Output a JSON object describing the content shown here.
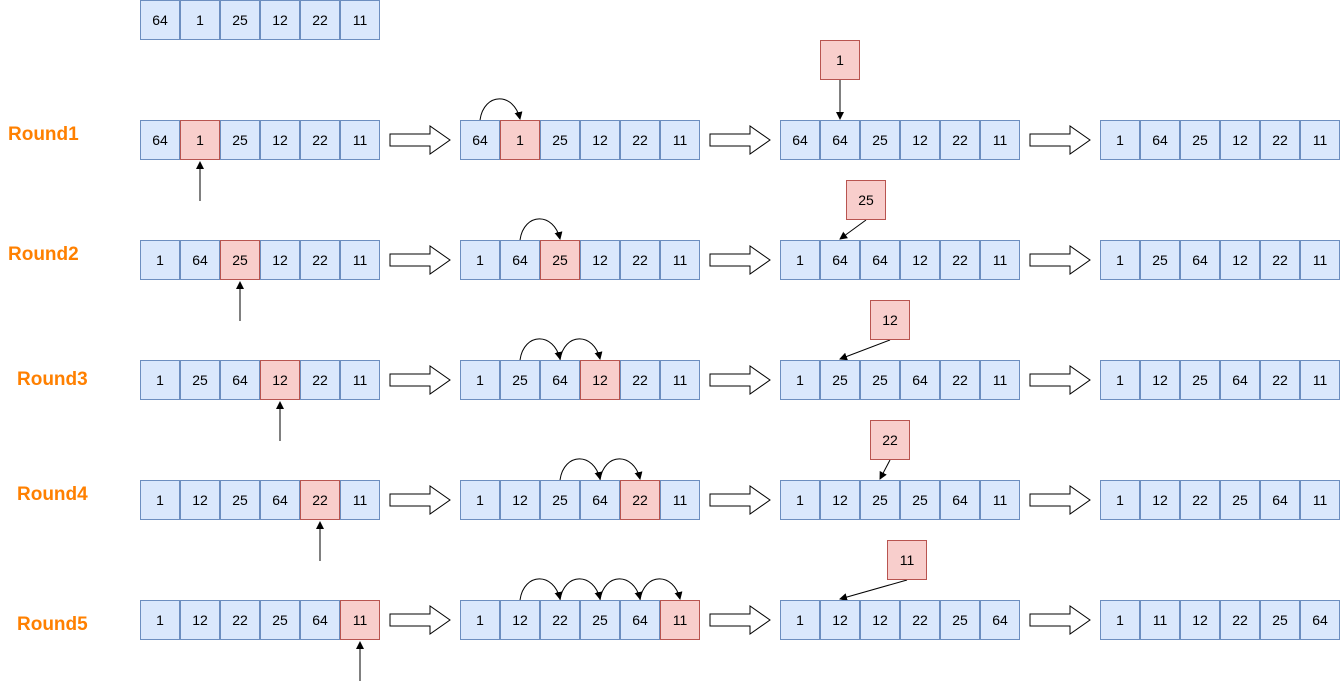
{
  "initial_array": [
    "64",
    "1",
    "25",
    "12",
    "22",
    "11"
  ],
  "rounds": [
    {
      "label": "Round1",
      "key": "1",
      "key_index": 1,
      "steps": [
        [
          "64",
          "1",
          "25",
          "12",
          "22",
          "11"
        ],
        [
          "64",
          "1",
          "25",
          "12",
          "22",
          "11"
        ],
        [
          "64",
          "64",
          "25",
          "12",
          "22",
          "11"
        ],
        [
          "1",
          "64",
          "25",
          "12",
          "22",
          "11"
        ]
      ]
    },
    {
      "label": "Round2",
      "key": "25",
      "key_index": 2,
      "steps": [
        [
          "1",
          "64",
          "25",
          "12",
          "22",
          "11"
        ],
        [
          "1",
          "64",
          "25",
          "12",
          "22",
          "11"
        ],
        [
          "1",
          "64",
          "64",
          "12",
          "22",
          "11"
        ],
        [
          "1",
          "25",
          "64",
          "12",
          "22",
          "11"
        ]
      ]
    },
    {
      "label": "Round3",
      "key": "12",
      "key_index": 3,
      "steps": [
        [
          "1",
          "25",
          "64",
          "12",
          "22",
          "11"
        ],
        [
          "1",
          "25",
          "64",
          "12",
          "22",
          "11"
        ],
        [
          "1",
          "25",
          "25",
          "64",
          "22",
          "11"
        ],
        [
          "1",
          "12",
          "25",
          "64",
          "22",
          "11"
        ]
      ]
    },
    {
      "label": "Round4",
      "key": "22",
      "key_index": 4,
      "steps": [
        [
          "1",
          "12",
          "25",
          "64",
          "22",
          "11"
        ],
        [
          "1",
          "12",
          "25",
          "64",
          "22",
          "11"
        ],
        [
          "1",
          "12",
          "25",
          "25",
          "64",
          "11"
        ],
        [
          "1",
          "12",
          "22",
          "25",
          "64",
          "11"
        ]
      ]
    },
    {
      "label": "Round5",
      "key": "11",
      "key_index": 5,
      "steps": [
        [
          "1",
          "12",
          "22",
          "25",
          "64",
          "11"
        ],
        [
          "1",
          "12",
          "22",
          "25",
          "64",
          "11"
        ],
        [
          "1",
          "12",
          "12",
          "22",
          "25",
          "64"
        ],
        [
          "1",
          "11",
          "12",
          "22",
          "25",
          "64"
        ]
      ]
    }
  ],
  "colors": {
    "cell_fill": "#dae8fc",
    "cell_border": "#6c8ebf",
    "highlight_fill": "#f8cecc",
    "highlight_border": "#b85450",
    "label": "#ff8000"
  }
}
